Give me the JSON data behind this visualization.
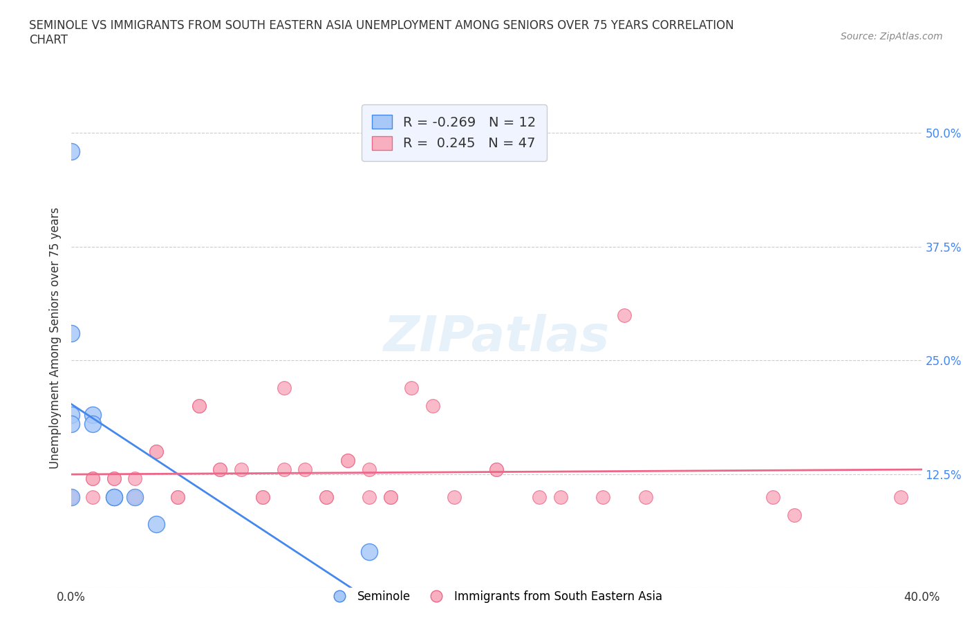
{
  "title": "SEMINOLE VS IMMIGRANTS FROM SOUTH EASTERN ASIA UNEMPLOYMENT AMONG SENIORS OVER 75 YEARS CORRELATION\nCHART",
  "source_text": "Source: ZipAtlas.com",
  "xlabel": "",
  "ylabel": "Unemployment Among Seniors over 75 years",
  "xlim": [
    0.0,
    0.4
  ],
  "ylim": [
    0.0,
    0.55
  ],
  "yticks": [
    0.0,
    0.125,
    0.25,
    0.375,
    0.5
  ],
  "ytick_labels": [
    "",
    "12.5%",
    "25.0%",
    "37.5%",
    "50.0%"
  ],
  "xticks": [
    0.0,
    0.08,
    0.16,
    0.24,
    0.32,
    0.4
  ],
  "xtick_labels": [
    "0.0%",
    "",
    "",
    "",
    "",
    "40.0%"
  ],
  "watermark": "ZIPatlas",
  "seminole_color": "#a8c8f8",
  "immigrants_color": "#f8b0c0",
  "seminole_line_color": "#4488ee",
  "immigrants_line_color": "#ee6688",
  "background_color": "#ffffff",
  "legend_box_color": "#f0f4ff",
  "seminole_R": -0.269,
  "seminole_N": 12,
  "immigrants_R": 0.245,
  "immigrants_N": 47,
  "seminole_x": [
    0.0,
    0.0,
    0.0,
    0.0,
    0.0,
    0.01,
    0.01,
    0.02,
    0.02,
    0.03,
    0.04,
    0.14
  ],
  "seminole_y": [
    0.48,
    0.28,
    0.19,
    0.18,
    0.1,
    0.19,
    0.18,
    0.1,
    0.1,
    0.1,
    0.07,
    0.04
  ],
  "immigrants_x": [
    0.0,
    0.0,
    0.01,
    0.01,
    0.01,
    0.02,
    0.02,
    0.02,
    0.02,
    0.03,
    0.03,
    0.03,
    0.04,
    0.04,
    0.05,
    0.05,
    0.06,
    0.06,
    0.07,
    0.07,
    0.08,
    0.09,
    0.09,
    0.1,
    0.1,
    0.11,
    0.12,
    0.12,
    0.13,
    0.13,
    0.14,
    0.14,
    0.15,
    0.15,
    0.16,
    0.17,
    0.18,
    0.2,
    0.2,
    0.22,
    0.23,
    0.25,
    0.26,
    0.27,
    0.33,
    0.34,
    0.39
  ],
  "immigrants_y": [
    0.1,
    0.1,
    0.12,
    0.12,
    0.1,
    0.12,
    0.12,
    0.1,
    0.1,
    0.12,
    0.1,
    0.1,
    0.15,
    0.15,
    0.1,
    0.1,
    0.2,
    0.2,
    0.13,
    0.13,
    0.13,
    0.1,
    0.1,
    0.13,
    0.22,
    0.13,
    0.1,
    0.1,
    0.14,
    0.14,
    0.13,
    0.1,
    0.1,
    0.1,
    0.22,
    0.2,
    0.1,
    0.13,
    0.13,
    0.1,
    0.1,
    0.1,
    0.3,
    0.1,
    0.1,
    0.08,
    0.1
  ]
}
